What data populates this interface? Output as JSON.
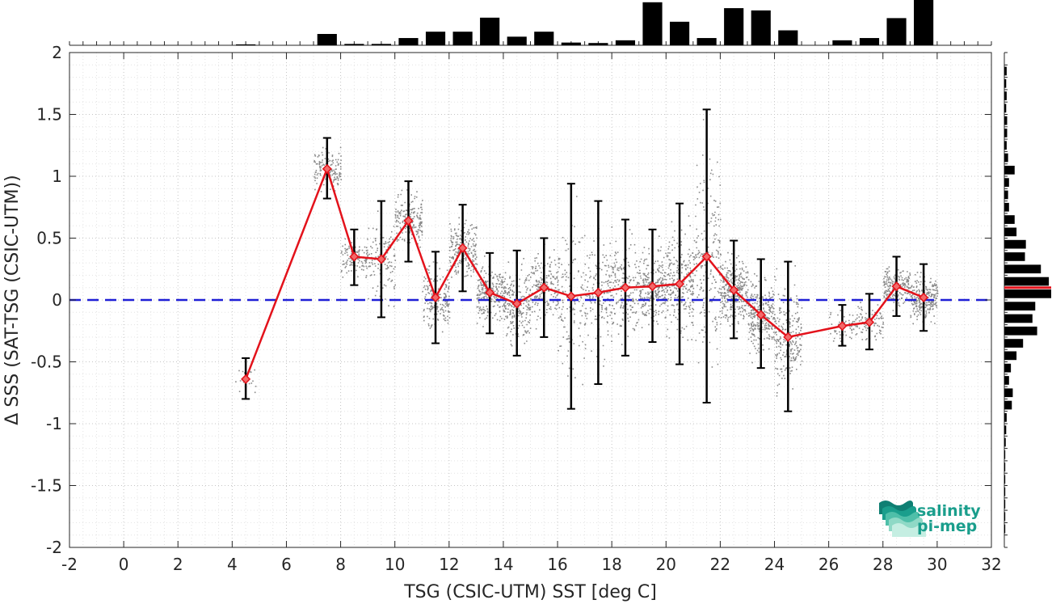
{
  "chart_data": {
    "type": "scatter",
    "xlabel": "TSG (CSIC-UTM) SST [deg C]",
    "ylabel": "Δ SSS (SAT-TSG (CSIC-UTM))",
    "xlim": [
      -2,
      32
    ],
    "ylim": [
      -2,
      2
    ],
    "xticks": [
      "-2",
      "0",
      "2",
      "4",
      "6",
      "8",
      "10",
      "12",
      "14",
      "16",
      "18",
      "20",
      "22",
      "24",
      "26",
      "28",
      "30",
      "32"
    ],
    "yticks": [
      "2",
      "1.5",
      "1",
      "0.5",
      "0",
      "-0.5",
      "-1",
      "-1.5",
      "-2"
    ],
    "grid": true,
    "reference_line": {
      "y": 0,
      "style": "dashed",
      "color": "#1f1fd6"
    },
    "series": [
      {
        "style": "line-with-errorbars",
        "color": "#e3121b",
        "x": [
          4.5,
          7.5,
          8.5,
          9.5,
          10.5,
          11.5,
          12.5,
          13.5,
          14.5,
          15.5,
          16.5,
          17.5,
          18.5,
          19.5,
          20.5,
          21.5,
          22.5,
          23.5,
          24.5,
          26.5,
          27.5,
          28.5,
          29.5
        ],
        "y": [
          -0.64,
          1.06,
          0.35,
          0.33,
          0.64,
          0.02,
          0.42,
          0.06,
          -0.03,
          0.1,
          0.03,
          0.06,
          0.1,
          0.11,
          0.13,
          0.35,
          0.08,
          -0.12,
          -0.3,
          -0.21,
          -0.18,
          0.11,
          0.02
        ],
        "err_low": [
          -0.8,
          0.82,
          0.12,
          -0.14,
          0.31,
          -0.35,
          0.07,
          -0.27,
          -0.45,
          -0.3,
          -0.88,
          -0.68,
          -0.45,
          -0.34,
          -0.52,
          -0.83,
          -0.31,
          -0.55,
          -0.9,
          -0.37,
          -0.4,
          -0.13,
          -0.25
        ],
        "err_high": [
          -0.47,
          1.31,
          0.57,
          0.8,
          0.96,
          0.39,
          0.77,
          0.38,
          0.4,
          0.5,
          0.94,
          0.8,
          0.65,
          0.57,
          0.78,
          1.54,
          0.48,
          0.33,
          0.31,
          -0.04,
          0.05,
          0.35,
          0.29
        ]
      }
    ],
    "top_histogram": {
      "bin_centers": [
        4.5,
        7.5,
        8.5,
        9.5,
        10.5,
        11.5,
        12.5,
        13.5,
        14.5,
        15.5,
        16.5,
        17.5,
        18.5,
        19.5,
        20.5,
        21.5,
        22.5,
        23.5,
        24.5,
        26.5,
        27.5,
        28.5,
        29.5
      ],
      "relative_counts": [
        0.02,
        0.25,
        0.03,
        0.03,
        0.16,
        0.3,
        0.3,
        0.61,
        0.19,
        0.3,
        0.06,
        0.05,
        0.11,
        0.95,
        0.52,
        0.16,
        0.82,
        0.77,
        0.33,
        0.11,
        0.16,
        0.6,
        1.0
      ]
    },
    "right_histogram": {
      "bin_centers": [
        1.85,
        1.75,
        1.65,
        1.55,
        1.45,
        1.35,
        1.25,
        1.15,
        1.05,
        0.95,
        0.85,
        0.75,
        0.65,
        0.55,
        0.45,
        0.35,
        0.25,
        0.15,
        0.05,
        -0.05,
        -0.15,
        -0.25,
        -0.35,
        -0.45,
        -0.55,
        -0.65,
        -0.75,
        -0.85,
        -0.95,
        -1.05,
        -1.15,
        -1.25,
        -1.35,
        -1.45,
        -1.55,
        -1.65,
        -1.75,
        -1.85
      ],
      "relative_counts": [
        0.05,
        0.04,
        0.05,
        0.04,
        0.06,
        0.06,
        0.05,
        0.08,
        0.22,
        0.1,
        0.08,
        0.1,
        0.22,
        0.26,
        0.46,
        0.44,
        0.78,
        0.95,
        1.0,
        0.66,
        0.6,
        0.7,
        0.4,
        0.26,
        0.14,
        0.1,
        0.18,
        0.16,
        0.05,
        0.04,
        0.03,
        0.02,
        0.02,
        0.02,
        0.02,
        0.02,
        0.02,
        0.02
      ],
      "mean_line_y": 0.1,
      "mean_line_color": "#e3121b"
    },
    "logo": {
      "line1": "salinity",
      "line2": "pi-mep",
      "color": "#1a9e8c"
    }
  }
}
